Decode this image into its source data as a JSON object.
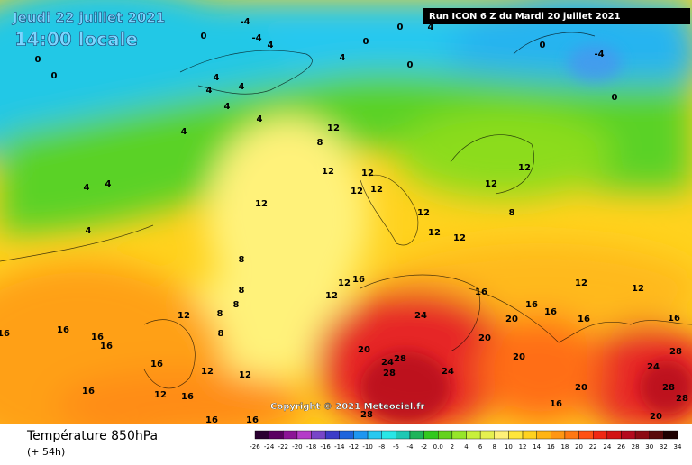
{
  "header": {
    "date": "Jeudi 22 juillet 2021",
    "time": "14:00 locale",
    "run": "Run ICON 6 Z du Mardi 20 juillet 2021"
  },
  "footer": {
    "copyright": "Copyright © 2021 Meteociel.fr",
    "parameter": "Température 850hPa",
    "lead": "(+ 54h)",
    "scale": [
      "-26",
      "-24",
      "-22",
      "-20",
      "-18",
      "-16",
      "-14",
      "-12",
      "-10",
      "-8",
      "-6",
      "-4",
      "-2",
      "0.0",
      "2",
      "4",
      "6",
      "8",
      "10",
      "12",
      "14",
      "16",
      "18",
      "20",
      "22",
      "24",
      "26",
      "28",
      "30",
      "32",
      "34"
    ]
  },
  "map_labels": [
    "-4",
    "0",
    "-4",
    "4",
    "0",
    "0",
    "4",
    "0",
    "0",
    "4",
    "0",
    "0",
    "-4",
    "0",
    "4",
    "4",
    "4",
    "4",
    "4",
    "4",
    "4",
    "4",
    "4",
    "8",
    "12",
    "12",
    "12",
    "12",
    "12",
    "12",
    "12",
    "12",
    "12",
    "12",
    "12",
    "8",
    "8",
    "8",
    "8",
    "8",
    "12",
    "12",
    "16",
    "12",
    "16",
    "16",
    "16",
    "16",
    "12",
    "12",
    "12",
    "16",
    "16",
    "16",
    "16",
    "16",
    "24",
    "20",
    "24",
    "28",
    "28",
    "24",
    "20",
    "20",
    "20",
    "16",
    "16",
    "16",
    "16",
    "16",
    "12",
    "12",
    "24",
    "28",
    "20",
    "28",
    "28",
    "20",
    "28",
    "16",
    "8"
  ]
}
